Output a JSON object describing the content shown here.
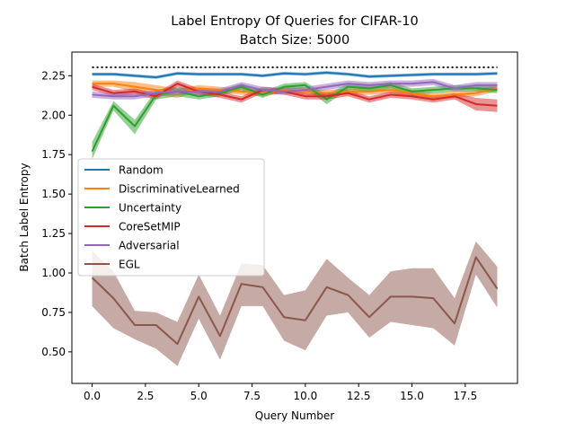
{
  "chart_data": {
    "type": "line",
    "title": "Label Entropy Of Queries for CIFAR-10",
    "subtitle": "Batch Size: 5000",
    "xlabel": "Query Number",
    "ylabel": "Batch Label Entropy",
    "xlim": [
      -0.95,
      19.95
    ],
    "ylim": [
      0.3,
      2.4
    ],
    "xticks": [
      0.0,
      2.5,
      5.0,
      7.5,
      10.0,
      12.5,
      15.0,
      17.5
    ],
    "xtick_labels": [
      "0.0",
      "2.5",
      "5.0",
      "7.5",
      "10.0",
      "12.5",
      "15.0",
      "17.5"
    ],
    "yticks": [
      0.5,
      0.75,
      1.0,
      1.25,
      1.5,
      1.75,
      2.0,
      2.25
    ],
    "ytick_labels": [
      "0.50",
      "0.75",
      "1.00",
      "1.25",
      "1.50",
      "1.75",
      "2.00",
      "2.25"
    ],
    "grid": false,
    "legend_position": "center-left",
    "x": [
      0,
      1,
      2,
      3,
      4,
      5,
      6,
      7,
      8,
      9,
      10,
      11,
      12,
      13,
      14,
      15,
      16,
      17,
      18,
      19
    ],
    "reference_line": {
      "y": 2.303,
      "x_range": [
        0,
        19
      ],
      "style": "dotted",
      "color": "#000000"
    },
    "series": [
      {
        "name": "Random",
        "color": "#1f77b4",
        "values": [
          2.26,
          2.26,
          2.25,
          2.24,
          2.265,
          2.26,
          2.26,
          2.26,
          2.25,
          2.265,
          2.26,
          2.27,
          2.26,
          2.245,
          2.25,
          2.255,
          2.26,
          2.26,
          2.26,
          2.265
        ],
        "lower": [
          2.25,
          2.25,
          2.24,
          2.23,
          2.255,
          2.25,
          2.25,
          2.25,
          2.24,
          2.255,
          2.25,
          2.26,
          2.25,
          2.235,
          2.24,
          2.245,
          2.25,
          2.25,
          2.25,
          2.255
        ],
        "upper": [
          2.27,
          2.27,
          2.26,
          2.25,
          2.275,
          2.27,
          2.27,
          2.27,
          2.26,
          2.275,
          2.27,
          2.28,
          2.27,
          2.255,
          2.26,
          2.265,
          2.27,
          2.27,
          2.27,
          2.275
        ]
      },
      {
        "name": "DiscriminativeLearned",
        "color": "#ff7f0e",
        "values": [
          2.2,
          2.2,
          2.18,
          2.16,
          2.14,
          2.17,
          2.16,
          2.15,
          2.14,
          2.16,
          2.15,
          2.14,
          2.15,
          2.15,
          2.16,
          2.14,
          2.12,
          2.13,
          2.14,
          2.17
        ],
        "lower": [
          2.18,
          2.18,
          2.15,
          2.13,
          2.11,
          2.15,
          2.14,
          2.13,
          2.12,
          2.14,
          2.13,
          2.12,
          2.13,
          2.13,
          2.14,
          2.12,
          2.1,
          2.11,
          2.12,
          2.15
        ],
        "upper": [
          2.22,
          2.22,
          2.21,
          2.19,
          2.17,
          2.19,
          2.18,
          2.17,
          2.16,
          2.18,
          2.17,
          2.16,
          2.17,
          2.17,
          2.18,
          2.16,
          2.14,
          2.15,
          2.16,
          2.19
        ]
      },
      {
        "name": "Uncertainty",
        "color": "#2ca02c",
        "values": [
          1.77,
          2.06,
          1.93,
          2.13,
          2.15,
          2.12,
          2.14,
          2.18,
          2.13,
          2.18,
          2.19,
          2.1,
          2.18,
          2.17,
          2.19,
          2.15,
          2.16,
          2.17,
          2.17,
          2.16
        ],
        "lower": [
          1.72,
          2.03,
          1.88,
          2.1,
          2.12,
          2.1,
          2.12,
          2.16,
          2.11,
          2.16,
          2.17,
          2.07,
          2.16,
          2.15,
          2.17,
          2.13,
          2.14,
          2.15,
          2.15,
          2.14
        ],
        "upper": [
          1.83,
          2.09,
          1.97,
          2.16,
          2.18,
          2.14,
          2.16,
          2.2,
          2.15,
          2.2,
          2.21,
          2.13,
          2.2,
          2.19,
          2.21,
          2.17,
          2.18,
          2.19,
          2.19,
          2.18
        ]
      },
      {
        "name": "CoreSetMIP",
        "color": "#d62728",
        "values": [
          2.18,
          2.14,
          2.15,
          2.12,
          2.2,
          2.15,
          2.13,
          2.1,
          2.16,
          2.15,
          2.12,
          2.12,
          2.14,
          2.1,
          2.13,
          2.12,
          2.1,
          2.12,
          2.07,
          2.06
        ],
        "lower": [
          2.16,
          2.12,
          2.13,
          2.1,
          2.18,
          2.13,
          2.11,
          2.08,
          2.14,
          2.13,
          2.1,
          2.1,
          2.12,
          2.08,
          2.11,
          2.1,
          2.08,
          2.1,
          2.03,
          2.02
        ],
        "upper": [
          2.2,
          2.16,
          2.17,
          2.14,
          2.22,
          2.17,
          2.15,
          2.12,
          2.18,
          2.17,
          2.14,
          2.14,
          2.16,
          2.12,
          2.15,
          2.14,
          2.12,
          2.14,
          2.11,
          2.1
        ]
      },
      {
        "name": "Adversarial",
        "color": "#9467bd",
        "values": [
          2.13,
          2.12,
          2.12,
          2.14,
          2.15,
          2.15,
          2.15,
          2.19,
          2.16,
          2.15,
          2.16,
          2.18,
          2.2,
          2.19,
          2.2,
          2.2,
          2.21,
          2.17,
          2.19,
          2.19
        ],
        "lower": [
          2.11,
          2.1,
          2.1,
          2.12,
          2.13,
          2.13,
          2.13,
          2.17,
          2.14,
          2.13,
          2.14,
          2.16,
          2.18,
          2.17,
          2.18,
          2.18,
          2.19,
          2.15,
          2.17,
          2.17
        ],
        "upper": [
          2.15,
          2.14,
          2.14,
          2.16,
          2.17,
          2.17,
          2.17,
          2.21,
          2.18,
          2.17,
          2.18,
          2.2,
          2.22,
          2.21,
          2.22,
          2.22,
          2.23,
          2.19,
          2.21,
          2.21
        ]
      },
      {
        "name": "EGL",
        "color": "#8c564b",
        "values": [
          0.97,
          0.84,
          0.67,
          0.67,
          0.55,
          0.85,
          0.6,
          0.93,
          0.91,
          0.72,
          0.7,
          0.91,
          0.86,
          0.72,
          0.85,
          0.85,
          0.84,
          0.68,
          1.1,
          0.9
        ],
        "lower": [
          0.79,
          0.65,
          0.58,
          0.52,
          0.41,
          0.71,
          0.45,
          0.79,
          0.79,
          0.57,
          0.51,
          0.73,
          0.75,
          0.59,
          0.69,
          0.67,
          0.65,
          0.54,
          0.99,
          0.78
        ],
        "upper": [
          1.14,
          1.01,
          0.76,
          0.75,
          0.69,
          0.99,
          0.73,
          1.06,
          1.05,
          0.86,
          0.89,
          1.09,
          0.97,
          0.86,
          1.01,
          1.03,
          1.03,
          0.84,
          1.2,
          1.04
        ]
      }
    ]
  }
}
